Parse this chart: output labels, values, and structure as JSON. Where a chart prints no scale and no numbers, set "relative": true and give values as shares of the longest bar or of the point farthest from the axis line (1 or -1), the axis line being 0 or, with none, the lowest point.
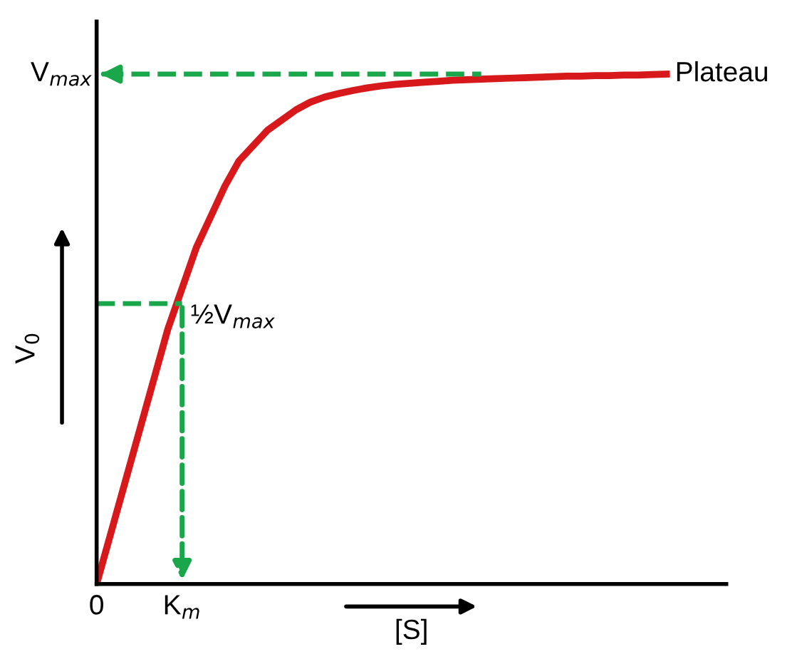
{
  "chart_data": {
    "type": "line",
    "relative": true,
    "ylabel": "V$_{0}$",
    "xlabel": "[S]",
    "categories": [
      null,
      null,
      null,
      null,
      null,
      null,
      null,
      null,
      null,
      null,
      null,
      null,
      null,
      null,
      null,
      null,
      null,
      null,
      null,
      null,
      null,
      null,
      null,
      null,
      null,
      null,
      null,
      null,
      null,
      null,
      null,
      null,
      null,
      null,
      null,
      null,
      null,
      null,
      null,
      null,
      null
    ],
    "series": [
      {
        "color": "#d7191c",
        "values": [
          0,
          0.1,
          0.2,
          0.3,
          0.4,
          0.5,
          0.58,
          0.66,
          0.72,
          0.78,
          0.83,
          0.86,
          0.89,
          0.91,
          0.93,
          0.945,
          0.955,
          0.962,
          0.968,
          0.973,
          0.977,
          0.98,
          0.982,
          0.984,
          0.986,
          0.988,
          0.989,
          0.99,
          0.991,
          0.992,
          0.993,
          0.994,
          0.995,
          0.996,
          0.996,
          0.997,
          0.997,
          0.998,
          0.998,
          0.999,
          1.0
        ]
      }
    ],
    "ref_lines": [
      {
        "axis": "y",
        "value": 1,
        "label": "V$_{max}$",
        "color": "#1aa64a",
        "line_style": "dashed"
      },
      {
        "axis": "y",
        "value": 0.55,
        "label": "½V$_{max}$",
        "color": "#1aa64a",
        "line_style": "dashed"
      }
    ],
    "annotations": [
      "Plateau",
      "0",
      "K$_{m}$"
    ],
    "marker": "none",
    "line_style": "solid"
  }
}
